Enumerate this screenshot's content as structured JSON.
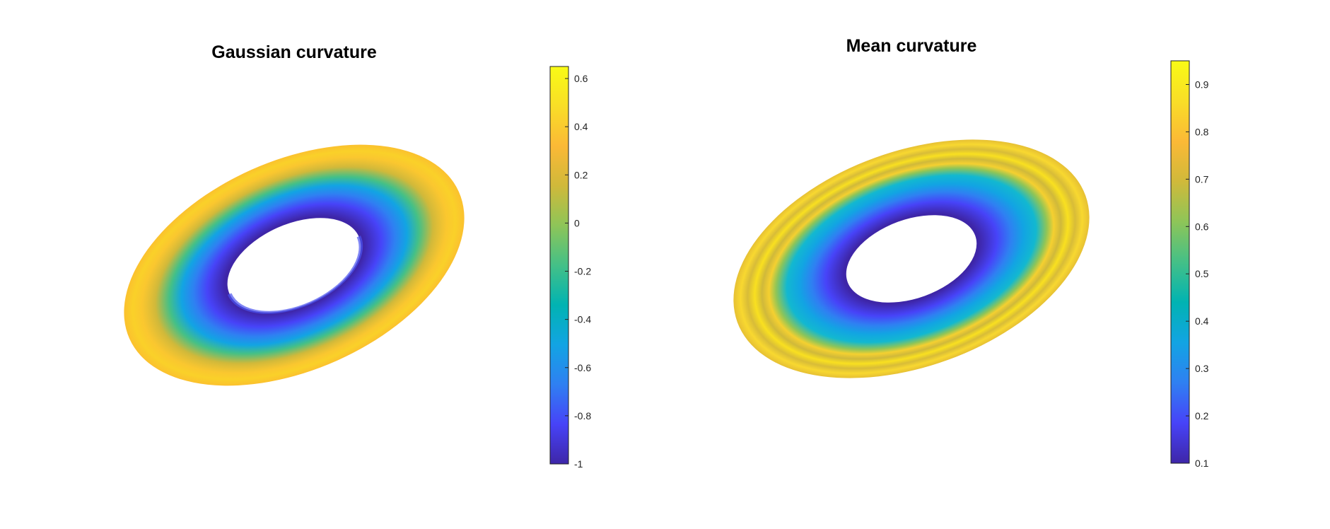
{
  "colormap_colors": [
    "#3e26a8",
    "#4743f8",
    "#2f80f2",
    "#12a4e3",
    "#01b3b2",
    "#44c087",
    "#8ec558",
    "#d0b93a",
    "#fbb936",
    "#f9de27",
    "#f9fb15"
  ],
  "chart_data": [
    {
      "type": "surface",
      "title": "Gaussian curvature",
      "surface": "torus",
      "colorbar": {
        "range": [
          -1,
          0.65
        ],
        "ticks": [
          0.6,
          0.4,
          0.2,
          0,
          -0.2,
          -0.4,
          -0.6,
          -0.8,
          -1
        ],
        "tick_labels": [
          "0.6",
          "0.4",
          "0.2",
          "0",
          "-0.2",
          "-0.4",
          "-0.6",
          "-0.8",
          "-1"
        ]
      },
      "surface_values": {
        "outer_rim": 0.45,
        "mid_band": -0.2,
        "inner_hole": -0.95
      },
      "grid": false
    },
    {
      "type": "surface",
      "title": "Mean curvature",
      "surface": "torus",
      "colorbar": {
        "range": [
          0.1,
          0.95
        ],
        "ticks": [
          0.9,
          0.8,
          0.7,
          0.6,
          0.5,
          0.4,
          0.3,
          0.2,
          0.1
        ],
        "tick_labels": [
          "0.9",
          "0.8",
          "0.7",
          "0.6",
          "0.5",
          "0.4",
          "0.3",
          "0.2",
          "0.1"
        ]
      },
      "surface_values": {
        "outer_rim": 0.85,
        "mid_band": 0.5,
        "inner_hole": 0.2
      },
      "grid": false
    }
  ]
}
